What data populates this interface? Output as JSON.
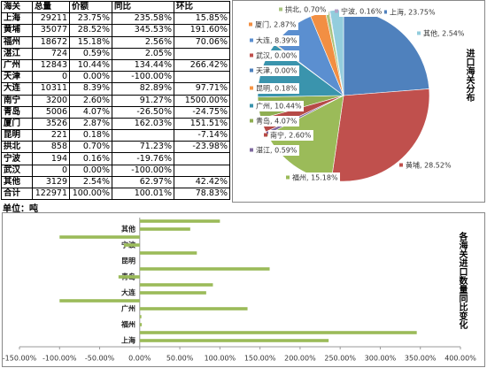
{
  "table": {
    "header": [
      "海关",
      "总量",
      "价额",
      "同比",
      "环比"
    ],
    "rows": [
      [
        "上海",
        "29211",
        "23.75%",
        "235.58%",
        "15.85%"
      ],
      [
        "黄埔",
        "35077",
        "28.52%",
        "345.53%",
        "191.60%"
      ],
      [
        "福州",
        "18672",
        "15.18%",
        "2.56%",
        "70.06%"
      ],
      [
        "湛江",
        "724",
        "0.59%",
        "2.05%",
        null
      ],
      [
        "广州",
        "12843",
        "10.44%",
        "134.44%",
        "266.42%"
      ],
      [
        "天津",
        "0",
        "0.00%",
        "-100.00%",
        null
      ],
      [
        "大连",
        "10311",
        "8.39%",
        "82.89%",
        "97.71%"
      ],
      [
        "南宁",
        "3200",
        "2.60%",
        "91.27%",
        "1500.00%"
      ],
      [
        "青岛",
        "5006",
        "4.07%",
        "-26.50%",
        "-24.75%"
      ],
      [
        "厦门",
        "3526",
        "2.87%",
        "162.03%",
        "151.51%"
      ],
      [
        "昆明",
        "221",
        "0.18%",
        null,
        "-7.14%"
      ],
      [
        "拱北",
        "858",
        "0.70%",
        "71.23%",
        "-23.98%"
      ],
      [
        "宁波",
        "194",
        "0.16%",
        "-19.76%",
        null
      ],
      [
        "武汉",
        "0",
        "0.00%",
        "-100.00%",
        null
      ],
      [
        "其他",
        "3129",
        "2.54%",
        "62.97%",
        "42.42%"
      ],
      [
        "合计",
        "122971",
        "100.00%",
        "100.01%",
        "78.83%"
      ]
    ]
  },
  "unit": "单位：吨",
  "chart_data": [
    {
      "type": "pie",
      "title": "进口海关分布",
      "values": [
        23.75,
        28.52,
        15.18,
        0.59,
        2.6,
        4.07,
        10.44,
        0.18,
        0,
        0,
        8.39,
        2.87,
        0.7,
        0.16,
        2.54
      ],
      "value_labels": [
        "上海, 23.75%",
        "黄埔, 28.52%",
        "福州, 15.18%",
        "湛江, 0.59%",
        "南宁, 2.60%",
        "青岛, 4.07%",
        "广州, 10.44%",
        "昆明, 0.18%",
        "天津, 0.00%",
        "武汉, 0.00%",
        "大连, 8.39%",
        "厦门, 2.87%",
        "拱北, 0.70%",
        "宁波, 0.16%",
        "其他, 2.54%"
      ],
      "colors": [
        "#4f81bd",
        "#c0504d",
        "#9bbb59",
        "#7f6a9f",
        "#b64a47",
        "#8fae52",
        "#3a94ad",
        "#f79646",
        "#4f81bd",
        "#c0504d",
        "#5b8fd0",
        "#f28f43",
        "#a9c47f",
        "#b3a2c7",
        "#93cddd"
      ]
    },
    {
      "type": "bar",
      "horizontal": true,
      "title": "各海关进口数量同比变化",
      "categories": [
        "上海",
        null,
        "福州",
        null,
        "广州",
        null,
        "大连",
        null,
        "青岛",
        null,
        "昆明",
        null,
        "宁波",
        null,
        "其他",
        null
      ],
      "values": [
        235.58,
        345.53,
        2.56,
        2.05,
        134.44,
        -100,
        82.89,
        91.27,
        -26.5,
        162.03,
        null,
        71.23,
        -19.76,
        -100,
        62.97,
        100.01
      ],
      "color": "#9bbb59",
      "xlim": [
        -150,
        400
      ],
      "xticks": [
        {
          "value": -150,
          "label": "-150.00%"
        },
        {
          "value": -100,
          "label": "-100.00%"
        },
        {
          "value": -50,
          "label": "-50.00%"
        },
        {
          "value": 0,
          "label": "0.00%"
        },
        {
          "value": 50,
          "label": "50.00%"
        },
        {
          "value": 100,
          "label": "100.00%"
        },
        {
          "value": 150,
          "label": "150.00%"
        },
        {
          "value": 200,
          "label": "200.00%"
        },
        {
          "value": 250,
          "label": "250.00%"
        },
        {
          "value": 300,
          "label": "300.00%"
        },
        {
          "value": 350,
          "label": "350.00%"
        },
        {
          "value": 400,
          "label": "400.00%"
        }
      ]
    }
  ]
}
